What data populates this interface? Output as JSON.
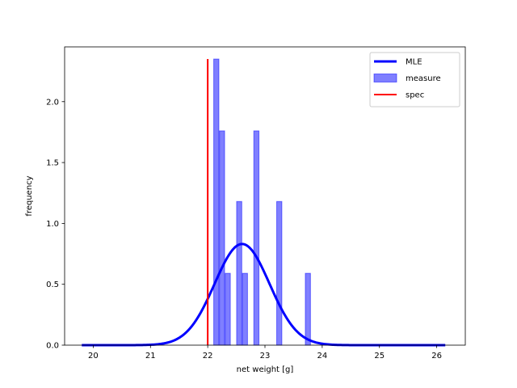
{
  "chart_data": {
    "type": "bar",
    "xlabel": "net weight [g]",
    "ylabel": "frequency",
    "xlim": [
      19.5,
      26.5
    ],
    "ylim": [
      0,
      2.45
    ],
    "xticks": [
      20,
      21,
      22,
      23,
      24,
      25,
      26
    ],
    "yticks": [
      0.0,
      0.5,
      1.0,
      1.5,
      2.0
    ],
    "ytick_labels": [
      "0.0",
      "0.5",
      "1.0",
      "1.5",
      "2.0"
    ],
    "grid": false,
    "legend_position": "top-right",
    "series": [
      {
        "name": "MLE",
        "kind": "line",
        "color": "#0000ff",
        "distribution": "normal",
        "mu": 22.6,
        "sigma": 0.48,
        "x_range": [
          19.8,
          26.15
        ]
      },
      {
        "name": "measure",
        "kind": "histogram",
        "color": "#0000ff",
        "opacity": 0.5,
        "bin_width": 0.09,
        "bins": [
          {
            "x": 22.15,
            "value": 2.35
          },
          {
            "x": 22.25,
            "value": 1.76
          },
          {
            "x": 22.35,
            "value": 0.59
          },
          {
            "x": 22.55,
            "value": 1.18
          },
          {
            "x": 22.65,
            "value": 0.59
          },
          {
            "x": 22.85,
            "value": 1.76
          },
          {
            "x": 23.25,
            "value": 1.18
          },
          {
            "x": 23.75,
            "value": 0.59
          }
        ]
      },
      {
        "name": "spec",
        "kind": "vline",
        "color": "#ff0000",
        "x": 22.0,
        "y_range": [
          0,
          2.35
        ]
      }
    ]
  }
}
